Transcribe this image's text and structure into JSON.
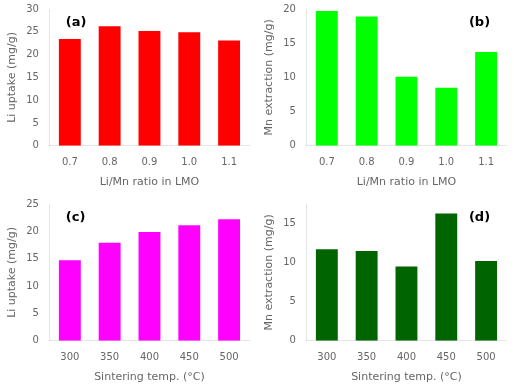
{
  "chart_data": [
    {
      "type": "bar",
      "categories": [
        "0.7",
        "0.8",
        "0.9",
        "1.0",
        "1.1"
      ],
      "values": [
        23.4,
        26.2,
        25.2,
        24.9,
        23.1
      ],
      "color": "#FF0000",
      "xlabel": "Li/Mn ratio in LMO",
      "ylabel": "Li uptake (mg/g)",
      "ylim": [
        0,
        30
      ],
      "yticks": [
        0,
        5,
        10,
        15,
        20,
        25,
        30
      ],
      "grid": false,
      "annotations": [
        "(a)"
      ]
    },
    {
      "type": "bar",
      "categories": [
        "0.7",
        "0.8",
        "0.9",
        "1.0",
        "1.1"
      ],
      "values": [
        19.7,
        18.9,
        10.1,
        8.5,
        13.7
      ],
      "color": "#00FF00",
      "xlabel": "Li/Mn ratio in LMO",
      "ylabel": "Mn extraction (mg/g)",
      "ylim": [
        0,
        20
      ],
      "yticks": [
        0,
        5,
        10,
        15,
        20
      ],
      "grid": false,
      "annotations": [
        "(b)"
      ]
    },
    {
      "type": "bar",
      "categories": [
        "300",
        "350",
        "400",
        "450",
        "500"
      ],
      "values": [
        14.7,
        17.9,
        19.9,
        21.1,
        22.2
      ],
      "color": "#FF00FF",
      "xlabel": "Sintering temp. (°C)",
      "ylabel": "Li uptake (mg/g)",
      "ylim": [
        0,
        25
      ],
      "yticks": [
        0,
        5,
        10,
        15,
        20,
        25
      ],
      "grid": false,
      "annotations": [
        "(c)"
      ]
    },
    {
      "type": "bar",
      "categories": [
        "300",
        "350",
        "400",
        "450",
        "500"
      ],
      "values": [
        11.7,
        11.5,
        9.5,
        16.3,
        10.2
      ],
      "color": "#006400",
      "xlabel": "Sintering temp. (°C)",
      "ylabel": "Mn extraction (mg/g)",
      "ylim": [
        0,
        17.5
      ],
      "yticks": [
        0,
        5,
        10,
        15
      ],
      "grid": false,
      "annotations": [
        "(d)"
      ]
    }
  ]
}
